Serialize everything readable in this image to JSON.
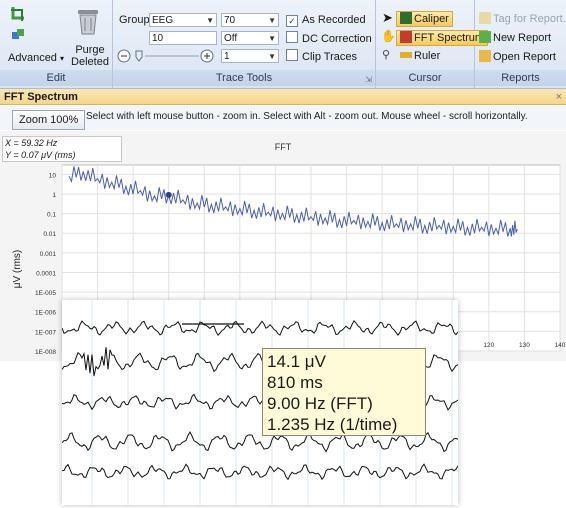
{
  "ribbon": {
    "edit": {
      "label": "Edit",
      "advanced_label": "Advanced",
      "purge_label_1": "Purge",
      "purge_label_2": "Deleted"
    },
    "trace_tools": {
      "label": "Trace Tools",
      "group_label": "Group",
      "group_value": "EEG",
      "field_10": "10",
      "combo_70": "70",
      "combo_off": "Off",
      "combo_1": "1",
      "as_recorded": "As Recorded",
      "dc_correction": "DC Correction",
      "clip_traces": "Clip Traces"
    },
    "cursor": {
      "label": "Cursor",
      "caliper": "Caliper",
      "fft_spectrum": "FFT Spectrum",
      "ruler": "Ruler"
    },
    "reports": {
      "label": "Reports",
      "tag_for_report": "Tag for Report...",
      "new_report": "New Report",
      "open_report": "Open Report"
    }
  },
  "panel": {
    "title": "FFT Spectrum",
    "zoom_button": "Zoom 100%",
    "hint": "Select with left mouse button - zoom in. Select with Alt - zoom out. Mouse wheel - scroll horizontally.",
    "readout_x": "X = 59.32 Hz",
    "readout_y": "Y = 0.07 μV (rms)"
  },
  "chart_data": {
    "type": "line",
    "title": "FFT",
    "ylabel": "μV (rms)",
    "yscale": "log",
    "ylim": [
      1e-08,
      30
    ],
    "xlim": [
      0,
      140
    ],
    "y_ticks": [
      "10",
      "1",
      "0.1",
      "0.01",
      "0.001",
      "0.0001",
      "1E-005",
      "1E-006",
      "1E-007",
      "1E-008"
    ],
    "x_ticks": [
      "120",
      "130",
      "140"
    ],
    "grid": true,
    "series_color": "#4a5fb0",
    "marker": {
      "x": 30,
      "y": 0.9
    },
    "series": [
      {
        "name": "",
        "x": [
          2,
          6,
          10,
          14,
          18,
          22,
          26,
          30,
          34,
          38,
          42,
          46,
          50,
          54,
          58,
          62,
          66,
          70,
          74,
          78,
          82,
          86,
          90,
          94,
          98,
          102,
          106,
          110,
          114,
          118,
          122,
          126,
          128
        ],
        "y": [
          8,
          14,
          6,
          4,
          2.5,
          1.5,
          0.8,
          0.9,
          0.5,
          0.35,
          0.3,
          0.22,
          0.18,
          0.15,
          0.12,
          0.1,
          0.09,
          0.07,
          0.06,
          0.05,
          0.045,
          0.04,
          0.035,
          0.03,
          0.03,
          0.025,
          0.025,
          0.022,
          0.02,
          0.02,
          0.018,
          0.018,
          0.016
        ]
      }
    ]
  },
  "tooltip": {
    "line1": "14.1 μV",
    "line2": "810 ms",
    "line3": "9.00 Hz (FFT)",
    "line4": "1.235 Hz (1/time)"
  }
}
